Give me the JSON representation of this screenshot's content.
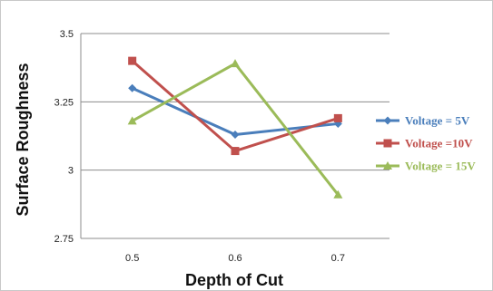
{
  "chart_data": {
    "type": "line",
    "xlabel": "Depth of Cut",
    "ylabel": "Surface Roughness",
    "x": [
      0.5,
      0.6,
      0.7
    ],
    "x_tick_labels": [
      "0.5",
      "0.6",
      "0.7"
    ],
    "y_ticks": [
      2.75,
      3,
      3.25,
      3.5
    ],
    "y_tick_labels": [
      "2.75",
      "3",
      "3.25",
      "3.5"
    ],
    "ylim": [
      2.75,
      3.5
    ],
    "grid": "horizontal",
    "legend_position": "right",
    "series": [
      {
        "name": "Voltage = 5V",
        "color": "#4a7ebb",
        "marker": "diamond",
        "values": [
          3.3,
          3.13,
          3.17
        ]
      },
      {
        "name": "Voltage =10V",
        "color": "#c0504d",
        "marker": "square",
        "values": [
          3.4,
          3.07,
          3.19
        ]
      },
      {
        "name": "Voltage = 15V",
        "color": "#9bbb59",
        "marker": "triangle",
        "values": [
          3.18,
          3.39,
          2.91
        ]
      }
    ]
  }
}
